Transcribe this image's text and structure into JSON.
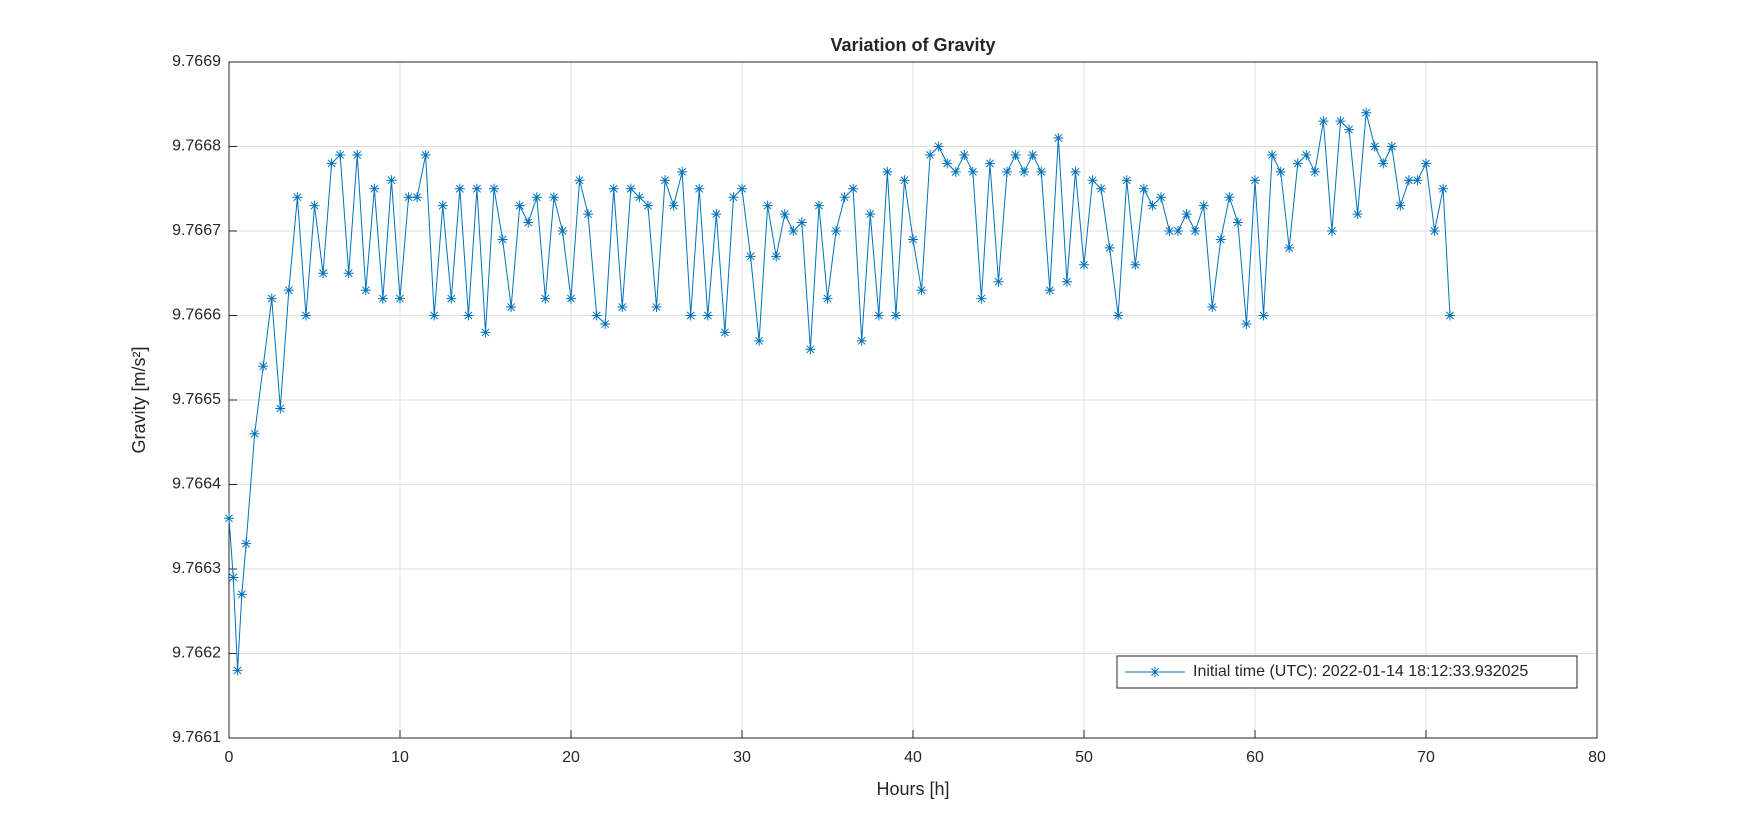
{
  "chart_data": {
    "type": "line",
    "title": "Variation of Gravity",
    "xlabel": "Hours [h]",
    "ylabel": "Gravity [m/s²]",
    "x": [
      0,
      0.25,
      0.5,
      0.75,
      1,
      1.5,
      2,
      2.5,
      3,
      3.5,
      4,
      4.5,
      5,
      5.5,
      6,
      6.5,
      7,
      7.5,
      8,
      8.5,
      9,
      9.5,
      10,
      10.5,
      11,
      11.5,
      12,
      12.5,
      13,
      13.5,
      14,
      14.5,
      15,
      15.5,
      16,
      16.5,
      17,
      17.5,
      18,
      18.5,
      19,
      19.5,
      20,
      20.5,
      21,
      21.5,
      22,
      22.5,
      23,
      23.5,
      24,
      24.5,
      25,
      25.5,
      26,
      26.5,
      27,
      27.5,
      28,
      28.5,
      29,
      29.5,
      30,
      30.5,
      31,
      31.5,
      32,
      32.5,
      33,
      33.5,
      34,
      34.5,
      35,
      35.5,
      36,
      36.5,
      37,
      37.5,
      38,
      38.5,
      39,
      39.5,
      40,
      40.5,
      41,
      41.5,
      42,
      42.5,
      43,
      43.5,
      44,
      44.5,
      45,
      45.5,
      46,
      46.5,
      47,
      47.5,
      48,
      48.5,
      49,
      49.5,
      50,
      50.5,
      51,
      51.5,
      52,
      52.5,
      53,
      53.5,
      54,
      54.5,
      55,
      55.5,
      56,
      56.5,
      57,
      57.5,
      58,
      58.5,
      59,
      59.5,
      60,
      60.5,
      61,
      61.5,
      62,
      62.5,
      63,
      63.5,
      64,
      64.5,
      65,
      65.5,
      66,
      66.5,
      67,
      67.5,
      68,
      68.5,
      69,
      69.5,
      70,
      70.5,
      71,
      71.4
    ],
    "series": [
      {
        "name": "Initial time (UTC): 2022-01-14 18:12:33.932025",
        "color": "#0072bd",
        "values": [
          9.76636,
          9.76629,
          9.76618,
          9.76627,
          9.76633,
          9.76646,
          9.76654,
          9.76662,
          9.76649,
          9.76663,
          9.76674,
          9.7666,
          9.76673,
          9.76665,
          9.76678,
          9.76679,
          9.76665,
          9.76679,
          9.76663,
          9.76675,
          9.76662,
          9.76676,
          9.76662,
          9.76674,
          9.76674,
          9.76679,
          9.7666,
          9.76673,
          9.76662,
          9.76675,
          9.7666,
          9.76675,
          9.76658,
          9.76675,
          9.76669,
          9.76661,
          9.76673,
          9.76671,
          9.76674,
          9.76662,
          9.76674,
          9.7667,
          9.76662,
          9.76676,
          9.76672,
          9.7666,
          9.76659,
          9.76675,
          9.76661,
          9.76675,
          9.76674,
          9.76673,
          9.76661,
          9.76676,
          9.76673,
          9.76677,
          9.7666,
          9.76675,
          9.7666,
          9.76672,
          9.76658,
          9.76674,
          9.76675,
          9.76667,
          9.76657,
          9.76673,
          9.76667,
          9.76672,
          9.7667,
          9.76671,
          9.76656,
          9.76673,
          9.76662,
          9.7667,
          9.76674,
          9.76675,
          9.76657,
          9.76672,
          9.7666,
          9.76677,
          9.7666,
          9.76676,
          9.76669,
          9.76663,
          9.76679,
          9.7668,
          9.76678,
          9.76677,
          9.76679,
          9.76677,
          9.76662,
          9.76678,
          9.76664,
          9.76677,
          9.76679,
          9.76677,
          9.76679,
          9.76677,
          9.76663,
          9.76681,
          9.76664,
          9.76677,
          9.76666,
          9.76676,
          9.76675,
          9.76668,
          9.7666,
          9.76676,
          9.76666,
          9.76675,
          9.76673,
          9.76674,
          9.7667,
          9.7667,
          9.76672,
          9.7667,
          9.76673,
          9.76661,
          9.76669,
          9.76674,
          9.76671,
          9.76659,
          9.76676,
          9.7666,
          9.76679,
          9.76677,
          9.76668,
          9.76678,
          9.76679,
          9.76677,
          9.76683,
          9.7667,
          9.76683,
          9.76682,
          9.76672,
          9.76684,
          9.7668,
          9.76678,
          9.7668,
          9.76673,
          9.76676,
          9.76676,
          9.76678,
          9.7667,
          9.76675,
          9.7666
        ]
      }
    ],
    "xlim": [
      0,
      80
    ],
    "xticks": [
      0,
      10,
      20,
      30,
      40,
      50,
      60,
      70,
      80
    ],
    "ylim": [
      9.7661,
      9.7669
    ],
    "yticks": [
      9.7661,
      9.7662,
      9.7663,
      9.7664,
      9.7665,
      9.7666,
      9.7667,
      9.7668,
      9.7669
    ],
    "grid": true,
    "legend": "southeast",
    "marker": "asterisk"
  }
}
